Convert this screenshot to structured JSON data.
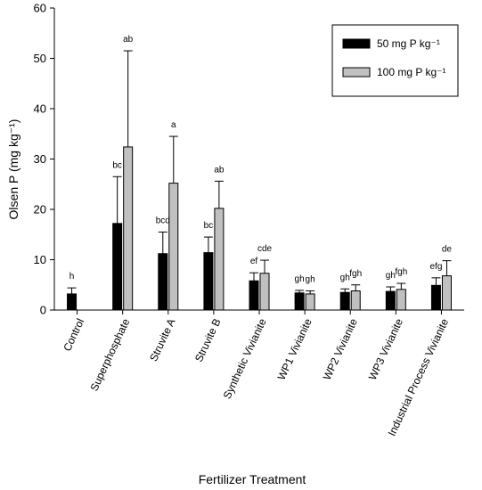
{
  "chart_data": {
    "type": "bar",
    "xlabel": "Fertilizer Treatment",
    "ylabel": "Olsen P (mg kg⁻¹)",
    "ylim": [
      0,
      60
    ],
    "yticks": [
      0,
      10,
      20,
      30,
      40,
      50,
      60
    ],
    "grid": false,
    "legend_position": "top-right",
    "categories": [
      "Control",
      "Superphosphate",
      "Struvite A",
      "Struvite B",
      "Synthetic Vivianite",
      "WP1 Vivianite",
      "WP2 Vivianite",
      "WP3 Vivianite",
      "Industrial Process Vivianite"
    ],
    "series": [
      {
        "name": "50 mg P kg⁻¹",
        "color": "#000000",
        "values": [
          3.2,
          17.2,
          11.2,
          11.4,
          5.8,
          3.4,
          3.5,
          3.7,
          4.9
        ],
        "errors": [
          1.2,
          9.3,
          4.3,
          3.1,
          1.6,
          0.5,
          0.7,
          0.9,
          1.5
        ],
        "labels": [
          "h",
          "bc",
          "bcd",
          "bc",
          "ef",
          "gh",
          "gh",
          "gh",
          "efg"
        ]
      },
      {
        "name": "100 mg P kg⁻¹",
        "color": "#c0c0c0",
        "values": [
          null,
          32.4,
          25.2,
          20.2,
          7.3,
          3.2,
          3.8,
          4.1,
          6.8
        ],
        "errors": [
          null,
          19.1,
          9.3,
          5.4,
          2.6,
          0.6,
          1.2,
          1.2,
          3.0
        ],
        "labels": [
          null,
          "ab",
          "a",
          "ab",
          "cde",
          "gh",
          "fgh",
          "fgh",
          "de"
        ]
      }
    ]
  }
}
